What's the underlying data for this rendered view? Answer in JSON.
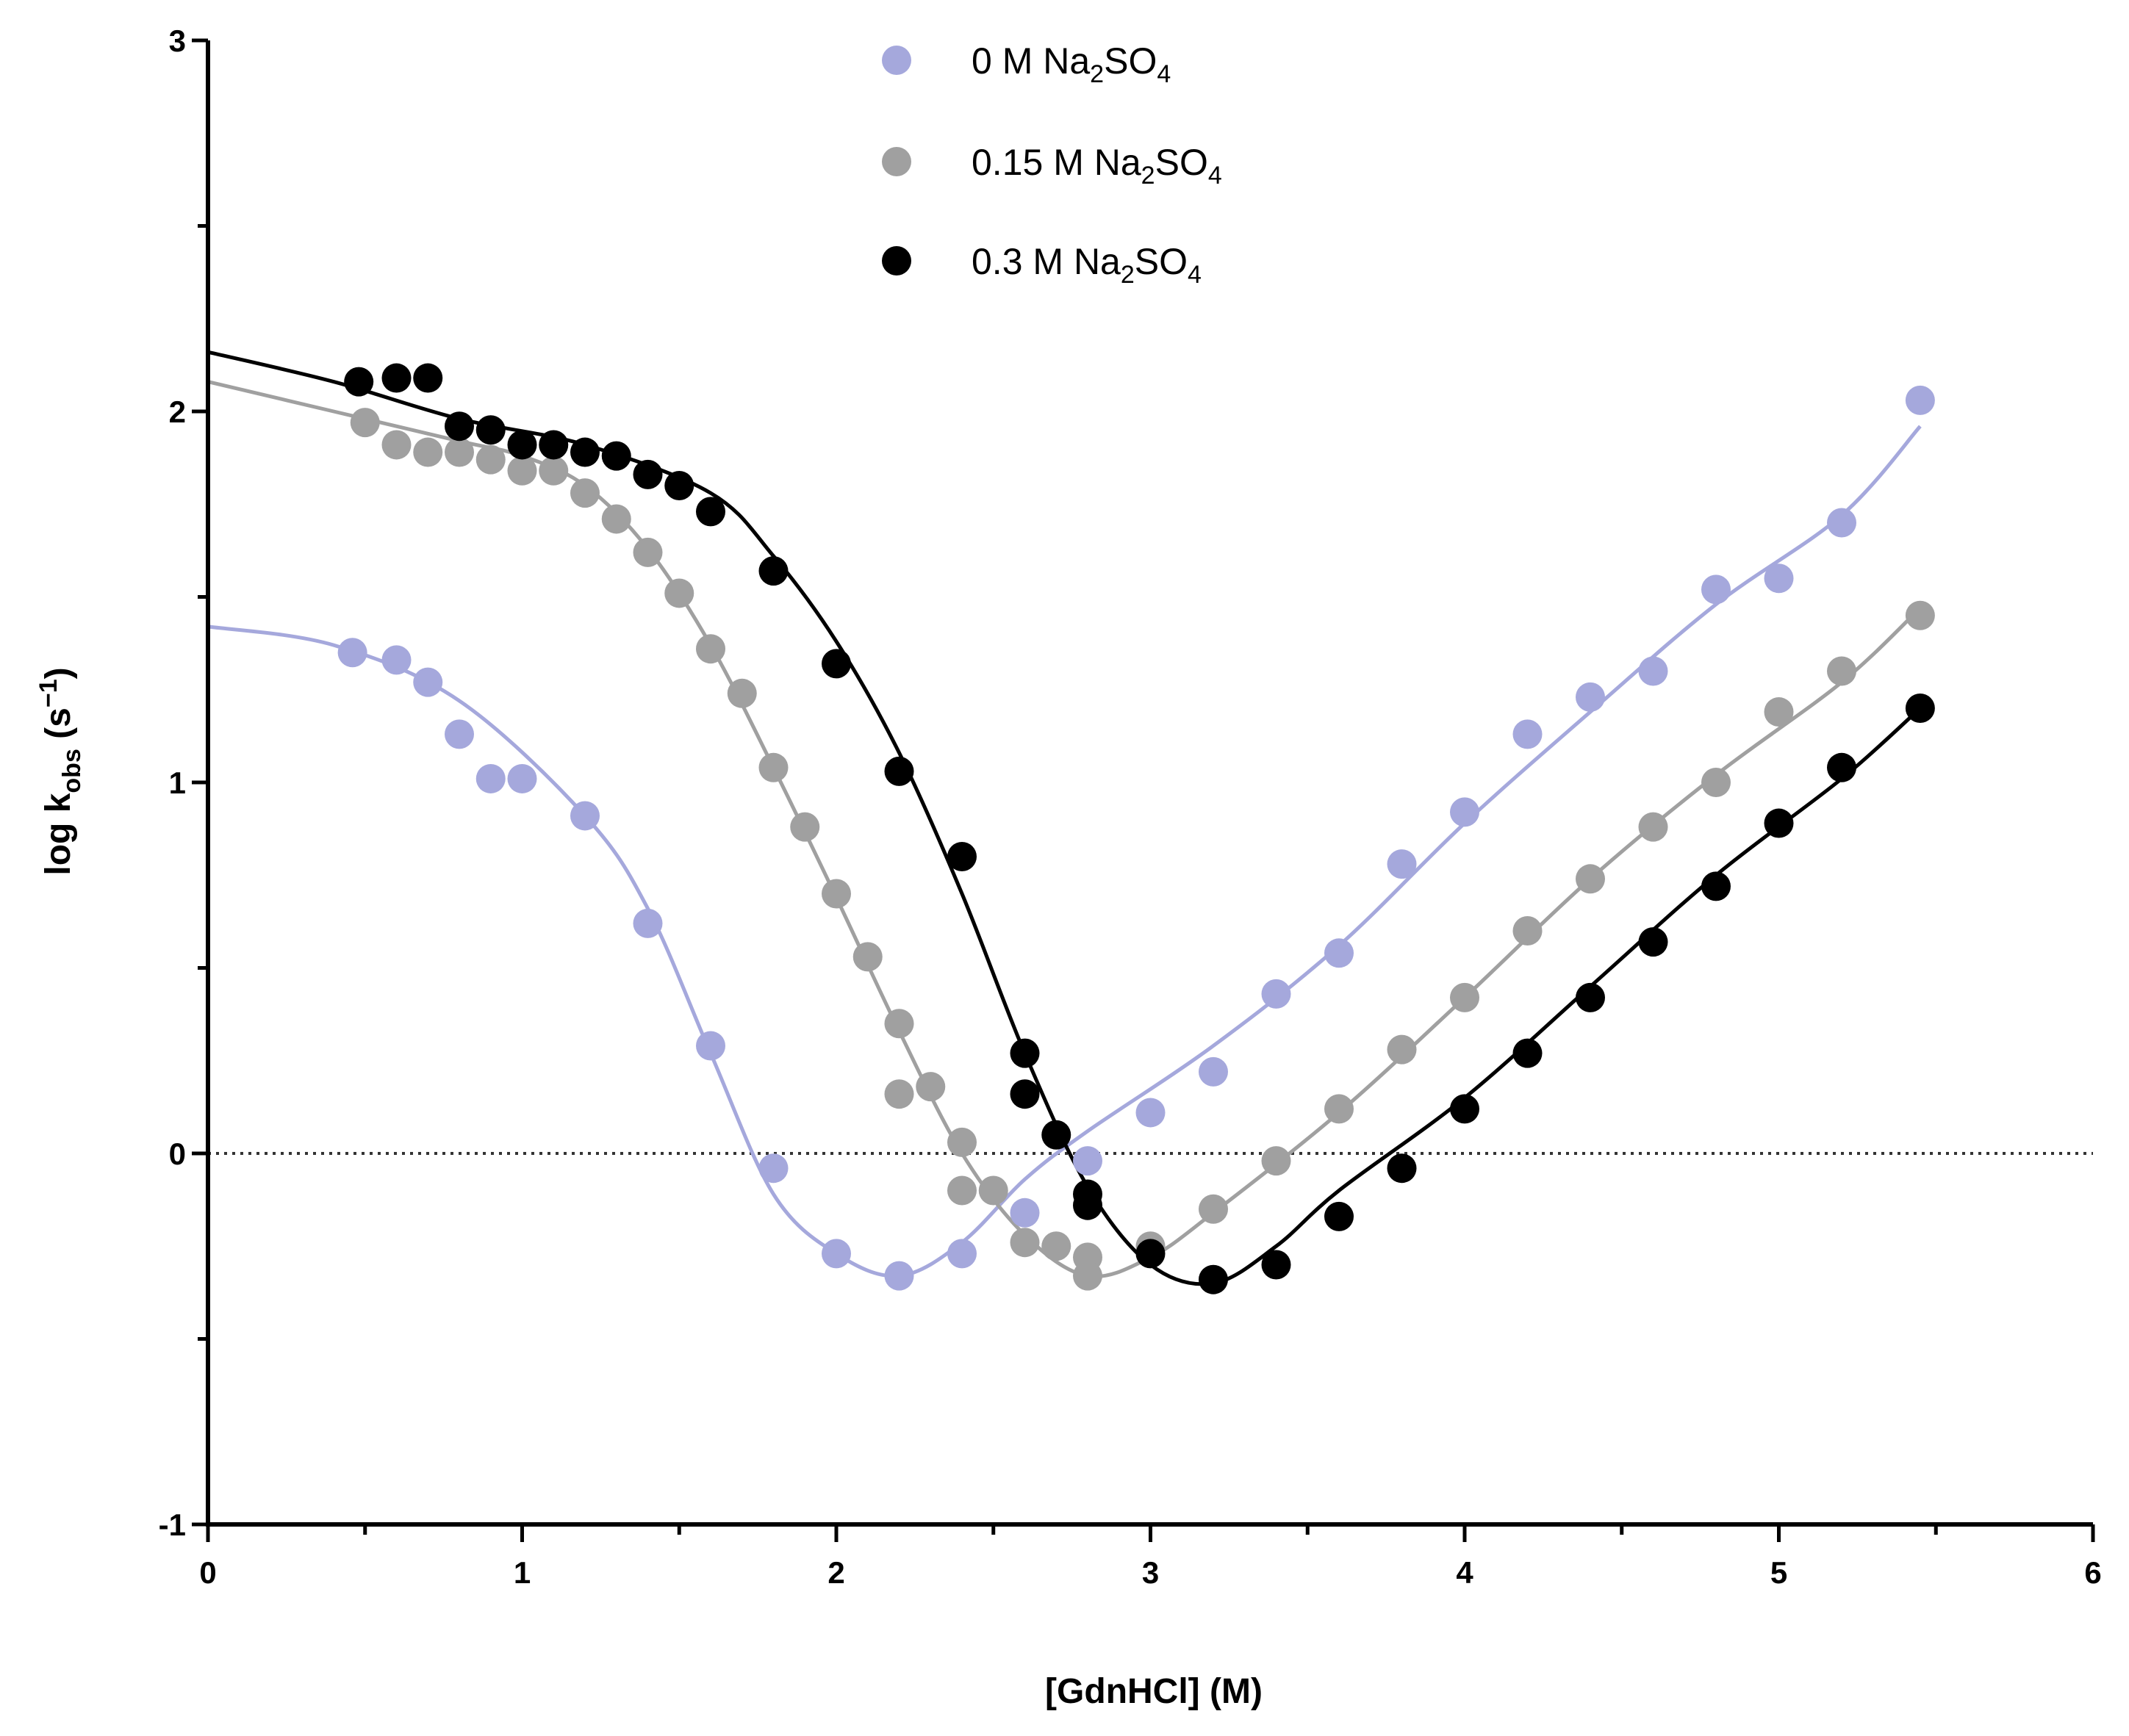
{
  "chart_data": {
    "type": "scatter",
    "title": "",
    "xlabel": "[GdnHCl] (M)",
    "ylabel": {
      "base": "log k",
      "subscript": "obs",
      "unit_open": " (s",
      "unit_exp": "−1",
      "unit_close": ")"
    },
    "xlim": [
      0,
      6
    ],
    "ylim": [
      -1,
      3
    ],
    "xticks": [
      "0",
      "1",
      "2",
      "3",
      "4",
      "5",
      "6"
    ],
    "yticks": [
      "-1",
      "0",
      "1",
      "2",
      "3"
    ],
    "reference_line": {
      "y": 0,
      "style": "dotted"
    },
    "legend_position": "top-center",
    "series": [
      {
        "name": "0 M Na2SO4",
        "label": {
          "prefix": "0 M Na",
          "sub1": "2",
          "mid": "SO",
          "sub2": "4"
        },
        "color": "#a5a8dc",
        "x": [
          0.46,
          0.6,
          0.7,
          0.8,
          0.9,
          1.0,
          1.2,
          1.4,
          1.6,
          1.8,
          2.0,
          2.2,
          2.4,
          2.6,
          2.8,
          3.0,
          3.2,
          3.4,
          3.6,
          3.8,
          4.0,
          4.2,
          4.4,
          4.6,
          4.8,
          5.0,
          5.2,
          5.45
        ],
        "y": [
          1.35,
          1.33,
          1.27,
          1.13,
          1.01,
          1.01,
          0.91,
          0.62,
          0.29,
          -0.04,
          -0.27,
          -0.33,
          -0.27,
          -0.16,
          -0.02,
          0.11,
          0.22,
          0.43,
          0.54,
          0.78,
          0.92,
          1.13,
          1.23,
          1.3,
          1.52,
          1.55,
          1.7,
          2.03
        ],
        "fit": [
          [
            0,
            1.42
          ],
          [
            0.4,
            1.37
          ],
          [
            0.8,
            1.22
          ],
          [
            1.2,
            0.91
          ],
          [
            1.4,
            0.66
          ],
          [
            1.6,
            0.27
          ],
          [
            1.8,
            -0.11
          ],
          [
            2.0,
            -0.27
          ],
          [
            2.2,
            -0.33
          ],
          [
            2.4,
            -0.24
          ],
          [
            2.6,
            -0.07
          ],
          [
            2.8,
            0.06
          ],
          [
            3.2,
            0.29
          ],
          [
            3.6,
            0.56
          ],
          [
            4.0,
            0.89
          ],
          [
            4.4,
            1.19
          ],
          [
            4.8,
            1.48
          ],
          [
            5.2,
            1.72
          ],
          [
            5.45,
            1.96
          ]
        ]
      },
      {
        "name": "0.15 M Na2SO4",
        "label": {
          "prefix": "0.15 M Na",
          "sub1": "2",
          "mid": "SO",
          "sub2": "4"
        },
        "color": "#a0a0a0",
        "x": [
          0.5,
          0.6,
          0.7,
          0.8,
          0.9,
          1.0,
          1.1,
          1.2,
          1.3,
          1.4,
          1.5,
          1.6,
          1.7,
          1.8,
          1.9,
          2.0,
          2.1,
          2.2,
          2.2,
          2.3,
          2.4,
          2.4,
          2.5,
          2.6,
          2.7,
          2.8,
          2.8,
          3.0,
          3.2,
          3.4,
          3.6,
          3.8,
          4.0,
          4.2,
          4.4,
          4.6,
          4.8,
          5.0,
          5.2,
          5.45
        ],
        "y": [
          1.97,
          1.91,
          1.89,
          1.89,
          1.87,
          1.84,
          1.84,
          1.78,
          1.71,
          1.62,
          1.51,
          1.36,
          1.24,
          1.04,
          0.88,
          0.7,
          0.53,
          0.35,
          0.16,
          0.18,
          0.03,
          -0.1,
          -0.1,
          -0.24,
          -0.25,
          -0.28,
          -0.33,
          -0.25,
          -0.15,
          -0.02,
          0.12,
          0.28,
          0.42,
          0.6,
          0.74,
          0.88,
          1.0,
          1.19,
          1.3,
          1.45
        ],
        "fit": [
          [
            0,
            2.08
          ],
          [
            0.4,
            2.0
          ],
          [
            0.8,
            1.92
          ],
          [
            1.0,
            1.88
          ],
          [
            1.2,
            1.8
          ],
          [
            1.4,
            1.63
          ],
          [
            1.6,
            1.37
          ],
          [
            1.8,
            1.04
          ],
          [
            2.0,
            0.69
          ],
          [
            2.2,
            0.33
          ],
          [
            2.4,
            0.0
          ],
          [
            2.6,
            -0.22
          ],
          [
            2.8,
            -0.33
          ],
          [
            3.0,
            -0.28
          ],
          [
            3.2,
            -0.16
          ],
          [
            3.6,
            0.11
          ],
          [
            4.0,
            0.42
          ],
          [
            4.4,
            0.74
          ],
          [
            4.8,
            1.02
          ],
          [
            5.2,
            1.27
          ],
          [
            5.45,
            1.47
          ]
        ]
      },
      {
        "name": "0.3 M Na2SO4",
        "label": {
          "prefix": "0.3 M Na",
          "sub1": "2",
          "mid": "SO",
          "sub2": "4"
        },
        "color": "#000000",
        "x": [
          0.48,
          0.6,
          0.7,
          0.8,
          0.9,
          1.0,
          1.1,
          1.2,
          1.3,
          1.4,
          1.5,
          1.6,
          1.8,
          2.0,
          2.2,
          2.4,
          2.6,
          2.6,
          2.7,
          2.8,
          2.8,
          3.0,
          3.2,
          3.4,
          3.6,
          3.8,
          4.0,
          4.2,
          4.4,
          4.6,
          4.8,
          5.0,
          5.2,
          5.45
        ],
        "y": [
          2.08,
          2.09,
          2.09,
          1.96,
          1.95,
          1.91,
          1.91,
          1.89,
          1.88,
          1.83,
          1.8,
          1.73,
          1.57,
          1.32,
          1.03,
          0.8,
          0.27,
          0.16,
          0.05,
          -0.11,
          -0.14,
          -0.27,
          -0.34,
          -0.3,
          -0.17,
          -0.04,
          0.12,
          0.27,
          0.42,
          0.57,
          0.72,
          0.89,
          1.04,
          1.2
        ],
        "fit": [
          [
            0,
            2.16
          ],
          [
            0.4,
            2.08
          ],
          [
            0.8,
            1.98
          ],
          [
            1.2,
            1.91
          ],
          [
            1.6,
            1.78
          ],
          [
            1.8,
            1.61
          ],
          [
            2.0,
            1.38
          ],
          [
            2.2,
            1.08
          ],
          [
            2.4,
            0.7
          ],
          [
            2.6,
            0.27
          ],
          [
            2.8,
            -0.09
          ],
          [
            3.0,
            -0.3
          ],
          [
            3.2,
            -0.35
          ],
          [
            3.4,
            -0.25
          ],
          [
            3.6,
            -0.1
          ],
          [
            4.0,
            0.15
          ],
          [
            4.4,
            0.45
          ],
          [
            4.8,
            0.75
          ],
          [
            5.2,
            1.01
          ],
          [
            5.45,
            1.2
          ]
        ]
      }
    ]
  }
}
